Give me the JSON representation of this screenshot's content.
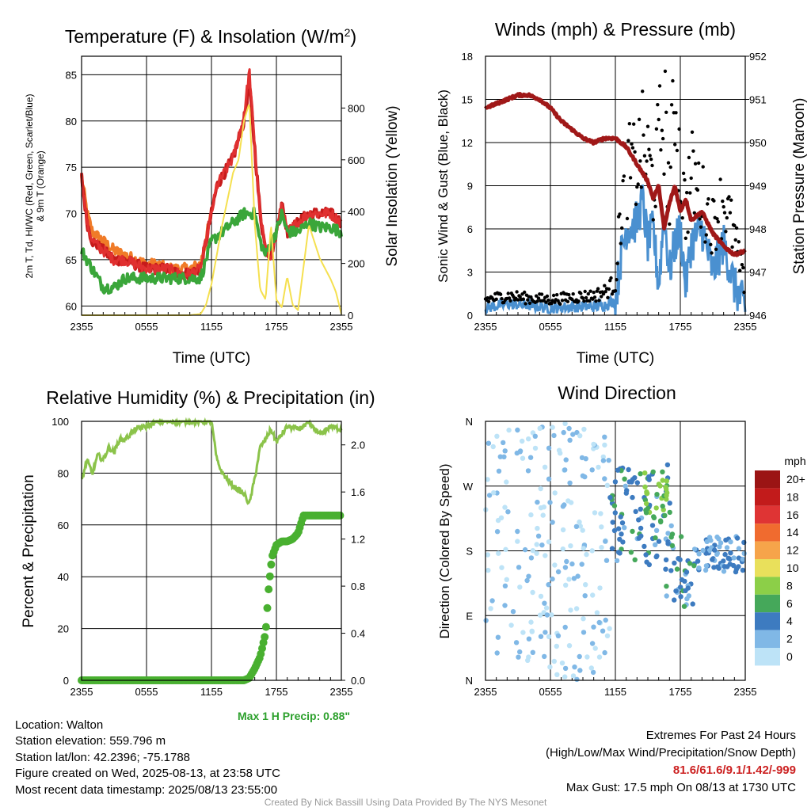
{
  "credit": "Created By Nick Bassill Using Data Provided By The NYS Mesonet",
  "info": {
    "location": "Location: Walton",
    "elevation": "Station elevation: 559.796 m",
    "latlon": "Station lat/lon: 42.2396; -75.1788",
    "created": "Figure created on Wed, 2025-08-13, at 23:58 UTC",
    "recent": "Most recent data timestamp: 2025/08/13 23:55:00"
  },
  "extremes": {
    "title": "Extremes For Past 24 Hours",
    "subtitle": "(High/Low/Max Wind/Precipitation/Snow Depth)",
    "values": "81.6/61.6/9.1/1.42/-999",
    "gust": "Max Gust: 17.5 mph On 08/13 at 1730 UTC"
  },
  "colors": {
    "temp": "#c61b1b",
    "dew": "#3aa63a",
    "hiwc": "#e03030",
    "t9m": "#f07b28",
    "solar": "#f5e050",
    "wind": "#4a90d0",
    "gust": "#000000",
    "pressure": "#a01818",
    "rh": "#8bc34a",
    "precip": "#49b030"
  },
  "chart_data": [
    {
      "type": "line",
      "title": "Temperature (F) & Insolation (W/m²)",
      "xlabel": "Time (UTC)",
      "ylabel": "2m T, Td, HI/WC (Red, Green, Scarlet/Blue) & 9m T (Orange)",
      "y2label": "Solar Insolation (Yellow)",
      "xticks": [
        "2355",
        "0555",
        "1155",
        "1755",
        "2355"
      ],
      "xlim": [
        0,
        24
      ],
      "ylim": [
        59,
        87
      ],
      "y2lim": [
        0,
        1000
      ],
      "yticks": [
        60,
        65,
        70,
        75,
        80,
        85
      ],
      "y2ticks": [
        0,
        200,
        400,
        600,
        800
      ],
      "series": [
        {
          "name": "2m T",
          "axis": "left",
          "x": [
            0,
            0.5,
            1,
            2,
            3,
            4,
            5,
            6,
            7,
            8,
            9,
            10,
            11,
            12,
            12.5,
            13,
            14,
            15,
            15.5,
            16,
            16.5,
            17,
            17.5,
            18,
            18.5,
            19,
            20,
            21,
            22,
            23,
            24
          ],
          "y": [
            74,
            69,
            67,
            66,
            65,
            65,
            64.5,
            64,
            64,
            64,
            63.5,
            63.5,
            64,
            70,
            73,
            74,
            76,
            80,
            84,
            77,
            70,
            66,
            65.5,
            68,
            71,
            68,
            69,
            70,
            70,
            70,
            69
          ]
        },
        {
          "name": "HI/WC",
          "axis": "left",
          "x": [
            0,
            0.5,
            1,
            2,
            3,
            4,
            5,
            6,
            7,
            8,
            9,
            10,
            11,
            12,
            12.5,
            13,
            14,
            15,
            15.5,
            16,
            16.5,
            17,
            17.5,
            18,
            18.5,
            19,
            20,
            21,
            22,
            23,
            24
          ],
          "y": [
            74,
            69,
            67,
            66,
            65,
            65,
            64.5,
            64,
            64,
            64,
            63.5,
            63.5,
            64,
            70,
            73,
            74,
            76,
            80.5,
            85.5,
            77,
            70,
            66,
            65.5,
            68,
            71,
            68,
            69,
            70,
            70,
            70,
            69
          ]
        },
        {
          "name": "Td",
          "axis": "left",
          "x": [
            0,
            1,
            2,
            3,
            4,
            5,
            6,
            7,
            8,
            9,
            10,
            11,
            12,
            13,
            14,
            15,
            16,
            16.5,
            17,
            17.5,
            18,
            18.5,
            19,
            20,
            21,
            22,
            23,
            24
          ],
          "y": [
            66,
            64,
            62,
            62,
            63,
            63,
            63,
            63,
            63,
            63,
            63,
            63,
            67,
            68,
            69,
            70,
            70,
            67,
            65.5,
            67,
            68,
            70,
            68,
            68,
            69,
            68.5,
            68.5,
            68
          ]
        },
        {
          "name": "9m T",
          "axis": "left",
          "x": [
            0,
            0.5,
            1,
            2,
            3,
            4,
            5,
            6,
            7,
            8,
            9,
            10,
            11,
            12
          ],
          "y": [
            74,
            70,
            68,
            67,
            66,
            65.5,
            65,
            64.5,
            64.5,
            64,
            64,
            64,
            64.5,
            70
          ]
        },
        {
          "name": "Solar",
          "axis": "right",
          "x": [
            0,
            10,
            11,
            11.5,
            12,
            13,
            14,
            14.5,
            15,
            15.5,
            16,
            16.5,
            17,
            17.5,
            18,
            18.5,
            19,
            19.5,
            20,
            21,
            22,
            23,
            23.5,
            24
          ],
          "y": [
            0,
            0,
            5,
            40,
            120,
            350,
            550,
            600,
            750,
            820,
            350,
            100,
            60,
            350,
            60,
            30,
            150,
            40,
            20,
            350,
            220,
            140,
            90,
            5
          ]
        }
      ]
    },
    {
      "type": "line",
      "title": "Winds (mph) & Pressure (mb)",
      "xlabel": "Time (UTC)",
      "ylabel": "Sonic Wind & Gust (Blue, Black)",
      "y2label": "Station Pressure (Maroon)",
      "xticks": [
        "2355",
        "0555",
        "1155",
        "1755",
        "2355"
      ],
      "xlim": [
        0,
        24
      ],
      "ylim": [
        0,
        18
      ],
      "y2lim": [
        946,
        952
      ],
      "yticks": [
        0,
        3,
        6,
        9,
        12,
        15,
        18
      ],
      "y2ticks": [
        946,
        947,
        948,
        949,
        950,
        951,
        952
      ],
      "series": [
        {
          "name": "Sonic Wind",
          "axis": "left",
          "x": [
            0,
            2,
            4,
            6,
            8,
            10,
            11,
            12,
            12.5,
            13,
            14,
            14.5,
            15,
            15.5,
            16,
            16.5,
            17,
            17.5,
            18,
            18.5,
            19,
            20,
            21,
            22,
            23,
            24
          ],
          "y": [
            0.5,
            0.8,
            0.7,
            0.5,
            0.6,
            0.6,
            0.7,
            1,
            4,
            6,
            6.5,
            8,
            5,
            6,
            2,
            7,
            3,
            5,
            6,
            2,
            5,
            6,
            3,
            5,
            2,
            0.5
          ]
        },
        {
          "name": "Gust",
          "axis": "left",
          "x": [
            0,
            2,
            4,
            6,
            8,
            10,
            11,
            12,
            12.5,
            13,
            14,
            14.5,
            15,
            15.5,
            16,
            16.5,
            17,
            17.5,
            18,
            18.5,
            19,
            20,
            21,
            22,
            23,
            24
          ],
          "y": [
            1.2,
            1.5,
            1.3,
            1.2,
            1.4,
            1.5,
            1.8,
            2.5,
            8,
            11,
            11.5,
            13,
            12,
            10,
            13,
            16,
            9,
            17.5,
            11,
            8,
            11,
            9,
            7,
            9,
            6,
            2
          ]
        },
        {
          "name": "Pressure",
          "axis": "right",
          "x": [
            0,
            1,
            2,
            3,
            4,
            5,
            6,
            7,
            8,
            9,
            10,
            11,
            12,
            13,
            14,
            15,
            15.5,
            16,
            16.5,
            17,
            17.5,
            18,
            18.5,
            19,
            20,
            21,
            22,
            23,
            24
          ],
          "y": [
            950.8,
            950.9,
            951,
            951.1,
            951.1,
            951.0,
            950.8,
            950.5,
            950.3,
            950.1,
            950.0,
            950.1,
            950.1,
            949.9,
            949.5,
            949.1,
            948.7,
            949.0,
            948.0,
            948.6,
            949.0,
            948.4,
            948.7,
            948.2,
            948.4,
            947.9,
            947.6,
            947.4,
            947.5
          ]
        }
      ]
    },
    {
      "type": "line",
      "title": "Relative Humidity (%) & Precipitation (in)",
      "ylabel": "Percent & Precipitation",
      "xticks": [
        "2355",
        "0555",
        "1155",
        "1755",
        "2355"
      ],
      "xlim": [
        0,
        24
      ],
      "ylim": [
        0,
        100
      ],
      "y2lim": [
        0,
        2.2
      ],
      "yticks": [
        0,
        20,
        40,
        60,
        80,
        100
      ],
      "y2ticks": [
        0.0,
        0.4,
        0.8,
        1.2,
        1.6,
        2.0
      ],
      "annotation": "Max 1 H Precip: 0.88\"",
      "series": [
        {
          "name": "RH",
          "axis": "left",
          "x": [
            0,
            0.5,
            1,
            1.5,
            2,
            2.5,
            3,
            3.5,
            4,
            5,
            6,
            7,
            8,
            9,
            10,
            11,
            12,
            12.5,
            13,
            14,
            15,
            15.5,
            16,
            16.5,
            17,
            17.5,
            18,
            19,
            20,
            21,
            22,
            23,
            24
          ],
          "y": [
            77,
            85,
            80,
            87,
            85,
            90,
            88,
            93,
            93,
            97,
            98,
            100,
            100,
            100,
            100,
            100,
            100,
            85,
            80,
            75,
            72,
            68,
            78,
            90,
            93,
            97,
            92,
            98,
            97,
            99,
            95,
            98,
            97
          ]
        },
        {
          "name": "Precip",
          "axis": "right",
          "x": [
            0,
            2,
            4,
            6,
            8,
            10,
            12,
            14,
            15,
            15.5,
            16,
            16.5,
            17,
            17.3,
            17.6,
            18,
            18.5,
            19,
            19.5,
            20,
            20.5,
            21,
            22,
            23,
            24
          ],
          "y": [
            0,
            0,
            0,
            0,
            0,
            0,
            0,
            0,
            0,
            0.02,
            0.1,
            0.2,
            0.4,
            0.8,
            1.05,
            1.15,
            1.18,
            1.18,
            1.2,
            1.25,
            1.4,
            1.4,
            1.4,
            1.4,
            1.4
          ]
        }
      ]
    },
    {
      "type": "scatter",
      "title": "Wind Direction",
      "ylabel": "Direction (Colored By Speed)",
      "xticks": [
        "2355",
        "0555",
        "1155",
        "1755",
        "2355"
      ],
      "yticks": [
        "N",
        "E",
        "S",
        "W",
        "N"
      ],
      "xlim": [
        0,
        24
      ],
      "ylim": [
        0,
        360
      ],
      "colorbar": {
        "unit": "mph",
        "labels": [
          "20+",
          "18",
          "16",
          "14",
          "12",
          "10",
          "8",
          "6",
          "4",
          "2",
          "0"
        ],
        "colors": [
          "#9b1414",
          "#c21b1b",
          "#df3434",
          "#f06b2f",
          "#f6a44a",
          "#e9e05b",
          "#8ccf48",
          "#45a85a",
          "#3d7bc0",
          "#80b8e6",
          "#bde3f7"
        ]
      },
      "groups": [
        {
          "hours": [
            0,
            11.5
          ],
          "speed": 1,
          "dir_min": 0,
          "dir_max": 360
        },
        {
          "hours": [
            11.5,
            17.5
          ],
          "speed": 4,
          "dir_min": 160,
          "dir_max": 300
        },
        {
          "hours": [
            14.5,
            16.8
          ],
          "speed": 7,
          "dir_min": 220,
          "dir_max": 290
        },
        {
          "hours": [
            16.5,
            19.5
          ],
          "speed": 4,
          "dir_min": 100,
          "dir_max": 200
        },
        {
          "hours": [
            19.5,
            24
          ],
          "speed": 3,
          "dir_min": 150,
          "dir_max": 200
        }
      ]
    }
  ]
}
